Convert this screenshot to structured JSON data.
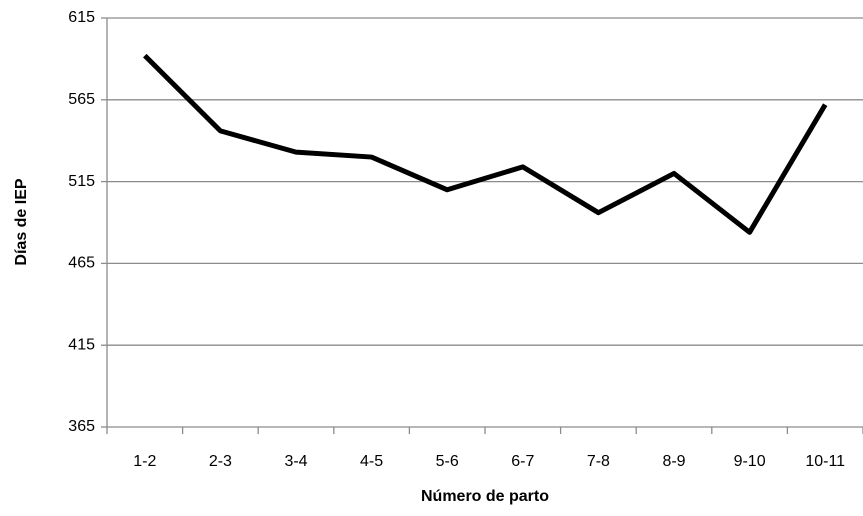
{
  "chart_data": {
    "type": "line",
    "y_axis_label": "Días de IEP",
    "x_axis_label": "Número de parto",
    "categories": [
      "1-2",
      "2-3",
      "3-4",
      "4-5",
      "5-6",
      "6-7",
      "7-8",
      "8-9",
      "9-10",
      "10-11"
    ],
    "values": [
      592,
      546,
      533,
      530,
      510,
      524,
      496,
      520,
      484,
      562
    ],
    "color": "#000000",
    "ylim": [
      365,
      615
    ],
    "yticks": [
      365,
      415,
      465,
      515,
      565,
      615
    ],
    "grid": true
  }
}
